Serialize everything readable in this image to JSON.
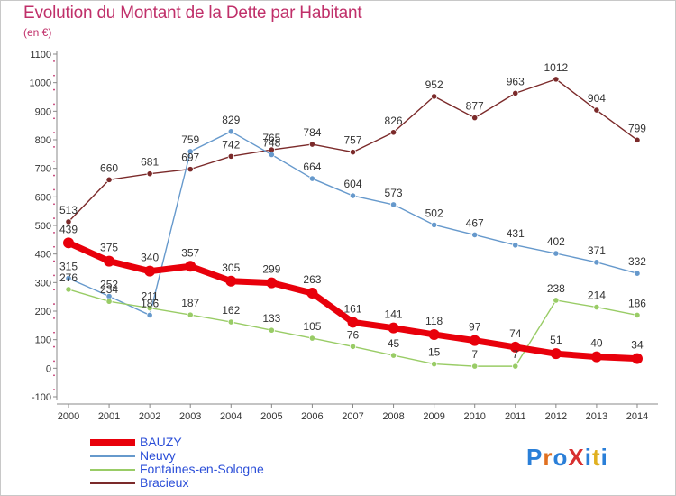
{
  "title": "Evolution du Montant de la Dette par Habitant",
  "unit": "(en €)",
  "logo_text": "ProXiti",
  "chart_data": {
    "type": "line",
    "title": "Evolution du Montant de la Dette par Habitant",
    "ylabel": "(en €)",
    "xlabel": "",
    "ylim": [
      -100,
      1100
    ],
    "y_ticks": [
      -100,
      0,
      100,
      200,
      300,
      400,
      500,
      600,
      700,
      800,
      900,
      1000,
      1100
    ],
    "grid": false,
    "legend_placement": "bottom-left",
    "x": [
      "2000",
      "2001",
      "2002",
      "2003",
      "2004",
      "2005",
      "2006",
      "2007",
      "2008",
      "2009",
      "2010",
      "2011",
      "2012",
      "2013",
      "2014"
    ],
    "series": [
      {
        "name": "BAUZY",
        "color": "#e8000b",
        "values": [
          439,
          375,
          340,
          357,
          305,
          299,
          263,
          161,
          141,
          118,
          97,
          74,
          51,
          40,
          34
        ]
      },
      {
        "name": "Neuvy",
        "color": "#6699cc",
        "values": [
          315,
          252,
          186,
          759,
          829,
          748,
          664,
          604,
          573,
          502,
          467,
          431,
          402,
          371,
          332
        ]
      },
      {
        "name": "Fontaines-en-Sologne",
        "color": "#99cc66",
        "values": [
          276,
          234,
          211,
          187,
          162,
          133,
          105,
          76,
          45,
          15,
          7,
          7,
          238,
          214,
          186
        ]
      },
      {
        "name": "Bracieux",
        "color": "#7b2a2a",
        "values": [
          513,
          660,
          681,
          697,
          742,
          765,
          784,
          757,
          826,
          952,
          877,
          963,
          1012,
          904,
          799
        ]
      }
    ]
  }
}
